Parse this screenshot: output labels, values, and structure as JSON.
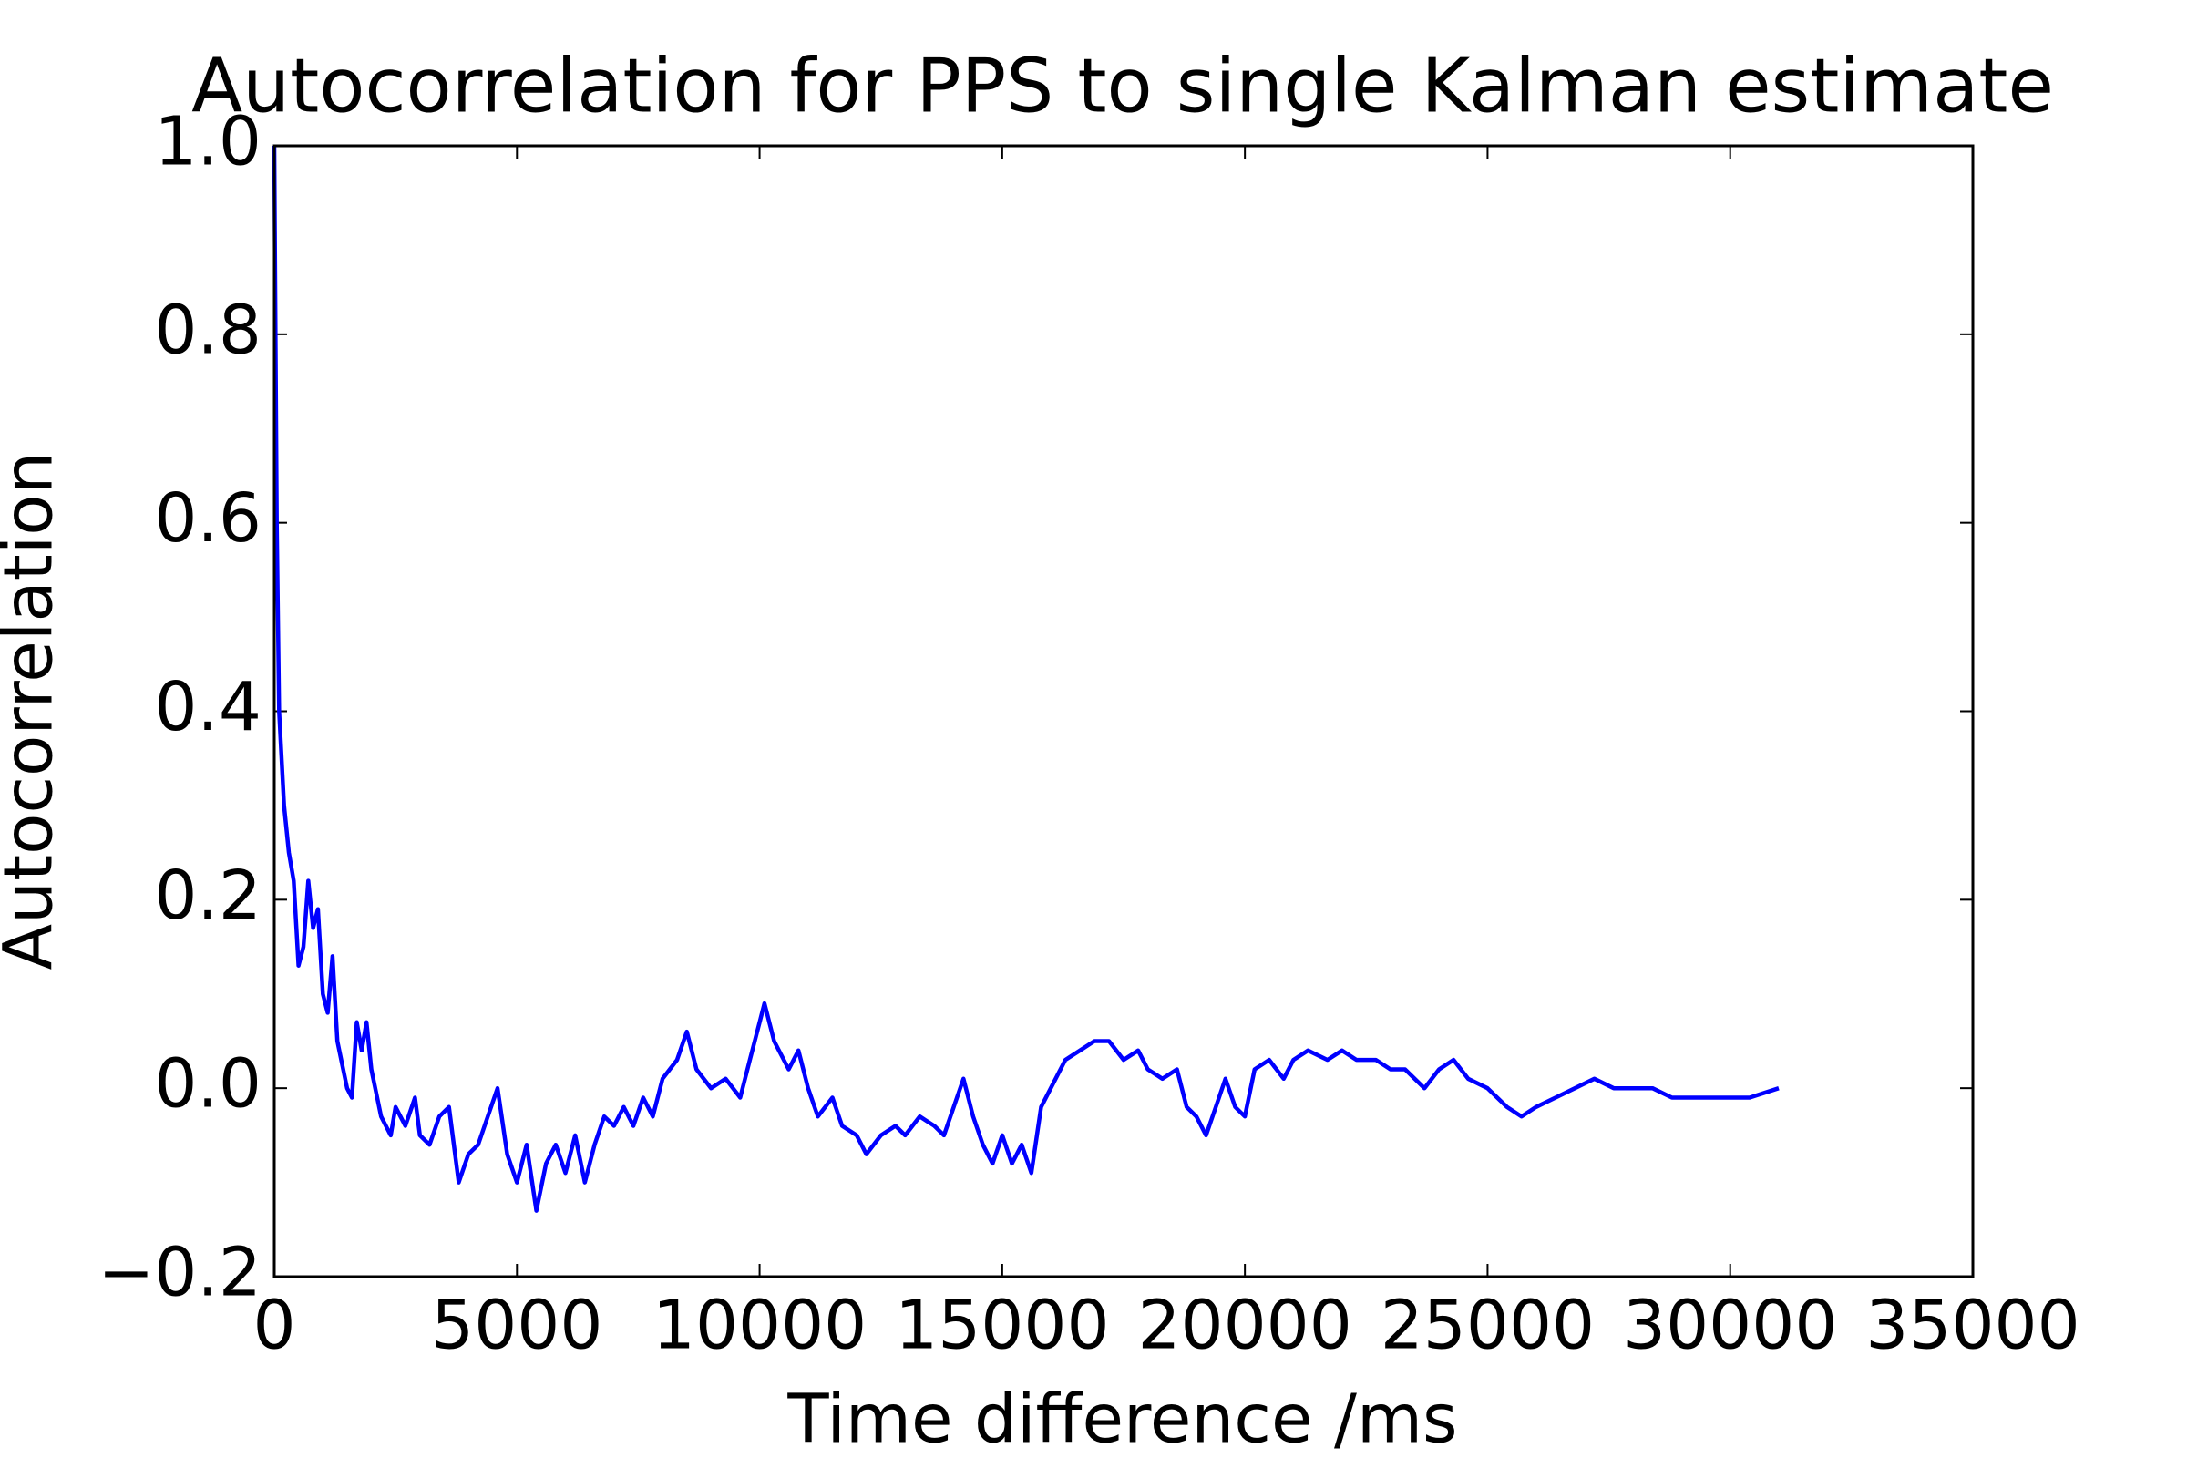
{
  "chart_data": {
    "type": "line",
    "title": "Autocorrelation for PPS to single Kalman estimate",
    "x_label": "Time difference /ms",
    "y_label": "Autocorrelation",
    "xlim": [
      0,
      35000
    ],
    "xticks": [
      0,
      5000,
      10000,
      15000,
      20000,
      25000,
      30000,
      35000
    ],
    "ylim": [
      -0.2,
      1.0
    ],
    "yticks": [
      {
        "value": -0.2,
        "label": "−0.2"
      },
      {
        "value": 0.0,
        "label": "0.0"
      },
      0.2,
      0.4,
      0.6,
      0.8,
      {
        "value": 1.0,
        "label": "1.0"
      }
    ],
    "grid": false,
    "series": [
      {
        "name": "Autocorrelation",
        "color": "#0000ff",
        "x": [
          0,
          50,
          100,
          200,
          300,
          400,
          500,
          600,
          700,
          800,
          900,
          1000,
          1100,
          1200,
          1300,
          1500,
          1600,
          1700,
          1800,
          1900,
          2000,
          2200,
          2400,
          2500,
          2700,
          2900,
          3000,
          3200,
          3400,
          3600,
          3800,
          4000,
          4200,
          4400,
          4600,
          4800,
          5000,
          5200,
          5400,
          5600,
          5800,
          6000,
          6200,
          6400,
          6600,
          6800,
          7000,
          7200,
          7400,
          7600,
          7800,
          8000,
          8300,
          8500,
          8700,
          9000,
          9300,
          9600,
          9800,
          10000,
          10100,
          10300,
          10600,
          10800,
          11000,
          11200,
          11500,
          11700,
          12000,
          12200,
          12500,
          12800,
          13000,
          13300,
          13600,
          13800,
          14000,
          14200,
          14400,
          14600,
          14800,
          15000,
          15200,
          15400,
          15600,
          15800,
          16000,
          16300,
          16600,
          16900,
          17200,
          17500,
          17800,
          18000,
          18300,
          18600,
          18800,
          19000,
          19200,
          19400,
          19600,
          19800,
          20000,
          20200,
          20500,
          20800,
          21000,
          21300,
          21700,
          22000,
          22300,
          22700,
          23000,
          23300,
          23700,
          24000,
          24300,
          24600,
          25000,
          25400,
          25700,
          26000,
          26400,
          26800,
          27200,
          27600,
          28000,
          28400,
          28800,
          29200,
          29600,
          30000,
          30400,
          31000
        ],
        "values": [
          1.0,
          0.6,
          0.4,
          0.3,
          0.25,
          0.22,
          0.13,
          0.15,
          0.22,
          0.17,
          0.19,
          0.1,
          0.08,
          0.14,
          0.05,
          0.0,
          -0.01,
          0.07,
          0.04,
          0.07,
          0.02,
          -0.03,
          -0.05,
          -0.02,
          -0.04,
          -0.01,
          -0.05,
          -0.06,
          -0.03,
          -0.02,
          -0.1,
          -0.07,
          -0.06,
          -0.03,
          0.0,
          -0.07,
          -0.1,
          -0.06,
          -0.13,
          -0.08,
          -0.06,
          -0.09,
          -0.05,
          -0.1,
          -0.06,
          -0.03,
          -0.04,
          -0.02,
          -0.04,
          -0.01,
          -0.03,
          0.01,
          0.03,
          0.06,
          0.02,
          0.0,
          0.01,
          -0.01,
          0.03,
          0.07,
          0.09,
          0.05,
          0.02,
          0.04,
          0.0,
          -0.03,
          -0.01,
          -0.04,
          -0.05,
          -0.07,
          -0.05,
          -0.04,
          -0.05,
          -0.03,
          -0.04,
          -0.05,
          -0.02,
          0.01,
          -0.03,
          -0.06,
          -0.08,
          -0.05,
          -0.08,
          -0.06,
          -0.09,
          -0.02,
          0.0,
          0.03,
          0.04,
          0.05,
          0.05,
          0.03,
          0.04,
          0.02,
          0.01,
          0.02,
          -0.02,
          -0.03,
          -0.05,
          -0.02,
          0.01,
          -0.02,
          -0.03,
          0.02,
          0.03,
          0.01,
          0.03,
          0.04,
          0.03,
          0.04,
          0.03,
          0.03,
          0.02,
          0.02,
          0.0,
          0.02,
          0.03,
          0.01,
          0.0,
          -0.02,
          -0.03,
          -0.02,
          -0.01,
          0.0,
          0.01,
          0.0,
          0.0,
          0.0,
          -0.01,
          -0.01,
          -0.01,
          -0.01,
          -0.01,
          0.0
        ]
      }
    ]
  }
}
